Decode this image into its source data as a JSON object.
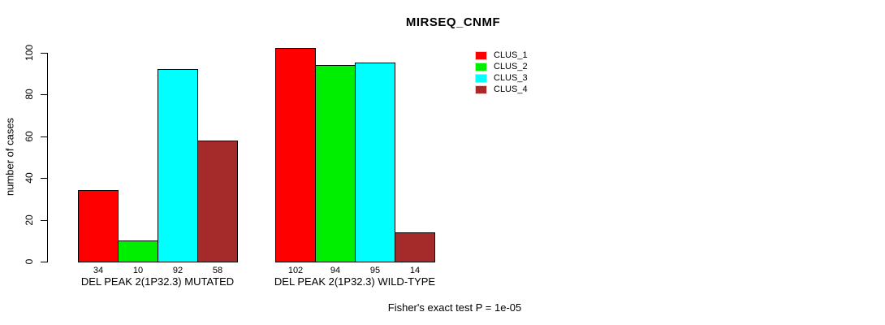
{
  "chart_data": {
    "type": "bar",
    "title": "MIRSEQ_CNMF",
    "ylabel": "number of cases",
    "ylim": [
      0,
      110
    ],
    "yticks": [
      0,
      20,
      40,
      60,
      80,
      100
    ],
    "grid": false,
    "legend_position": "right-outside",
    "categories": [
      "DEL PEAK 2(1P32.3) MUTATED",
      "DEL PEAK 2(1P32.3) WILD-TYPE"
    ],
    "series": [
      {
        "name": "CLUS_1",
        "color": "#ff0000",
        "values": [
          34,
          102
        ]
      },
      {
        "name": "CLUS_2",
        "color": "#00ee00",
        "values": [
          10,
          94
        ]
      },
      {
        "name": "CLUS_3",
        "color": "#00ffff",
        "values": [
          92,
          95
        ]
      },
      {
        "name": "CLUS_4",
        "color": "#a52a2a",
        "values": [
          58,
          14
        ]
      }
    ],
    "groups": [
      {
        "label": "DEL PEAK 2(1P32.3) MUTATED",
        "values": [
          34,
          10,
          92,
          58
        ]
      },
      {
        "label": "DEL PEAK 2(1P32.3) WILD-TYPE",
        "values": [
          102,
          94,
          95,
          14
        ]
      }
    ],
    "annotation": "Fisher's exact test P = 1e-05"
  }
}
